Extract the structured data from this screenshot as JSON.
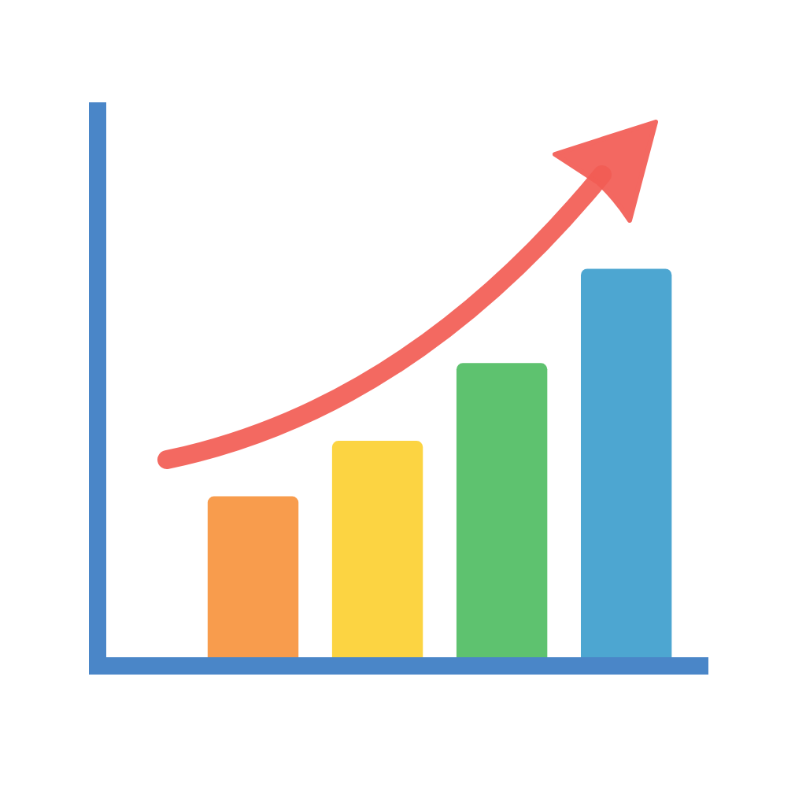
{
  "chart_data": {
    "type": "bar",
    "categories": [
      null,
      null,
      null,
      null
    ],
    "values": [
      29,
      39,
      53,
      70
    ],
    "colors": [
      "#f7913a",
      "#fccf2e",
      "#4cbb5f",
      "#3a9ccc"
    ],
    "ylim": [
      0,
      100
    ],
    "grid": false,
    "tick_labels": false
  }
}
